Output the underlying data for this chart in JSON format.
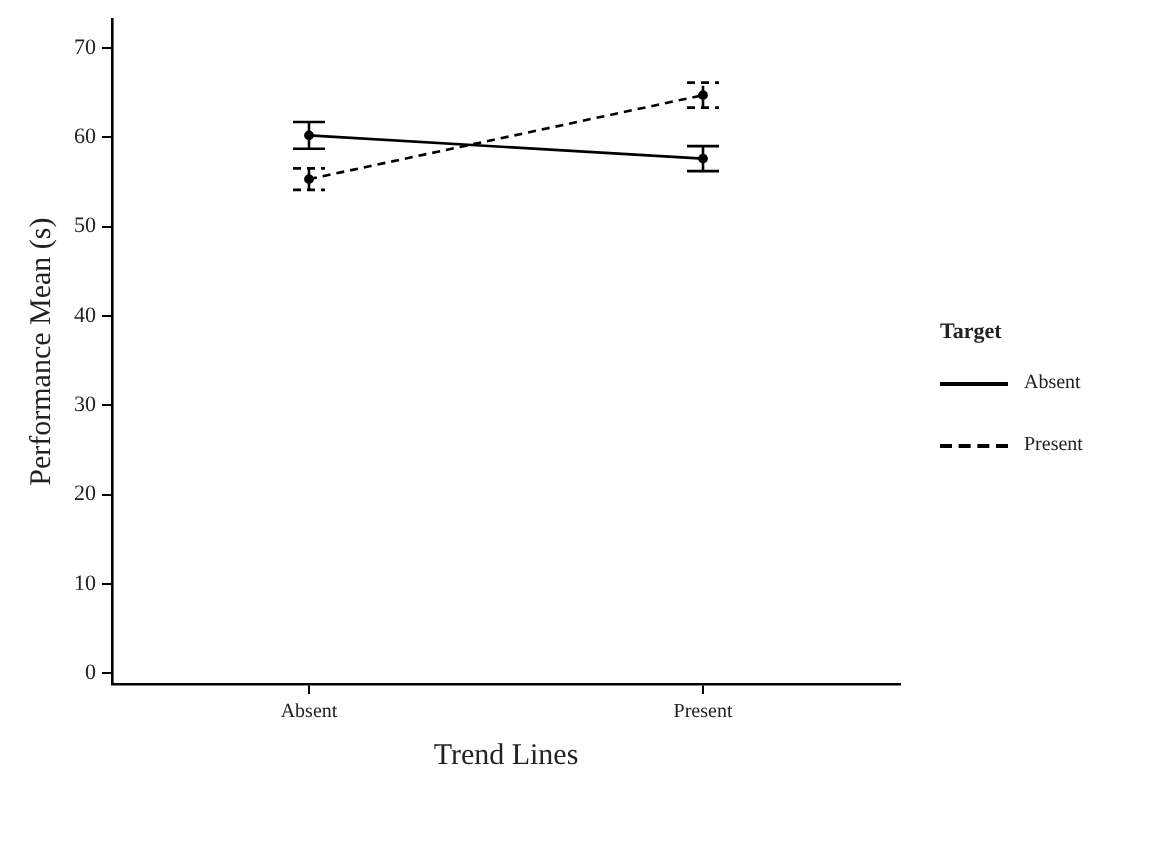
{
  "chart_data": {
    "type": "line",
    "xlabel": "Trend Lines",
    "ylabel": "Performance Mean (s)",
    "legend_title": "Target",
    "categories": [
      "Absent",
      "Present"
    ],
    "series": [
      {
        "name": "Absent",
        "color": "#000000",
        "line_style": "solid",
        "values": [
          60.2,
          57.6
        ],
        "errors": [
          1.5,
          1.4
        ]
      },
      {
        "name": "Present",
        "color": "#000000",
        "line_style": "dashed",
        "values": [
          55.3,
          64.7
        ],
        "errors": [
          1.2,
          1.4
        ]
      }
    ],
    "ylim": [
      -1.2,
      73.2
    ],
    "yticks": [
      0,
      10,
      20,
      30,
      40,
      50,
      60,
      70
    ],
    "grid": false,
    "legend": "right",
    "marker": "circle"
  }
}
